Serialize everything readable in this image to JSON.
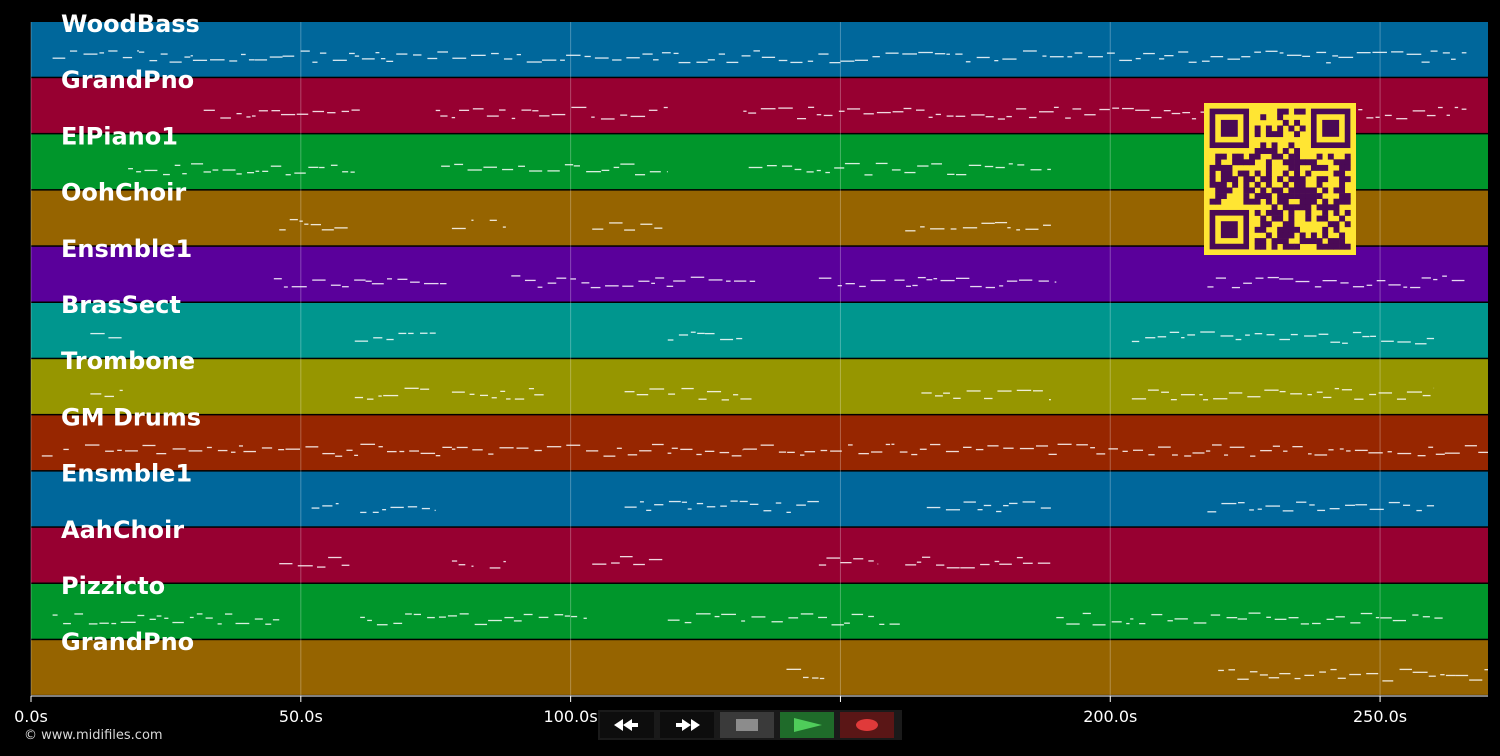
{
  "timeline": {
    "max_seconds": 270,
    "ticks": [
      {
        "t": 0,
        "label": "0.0s"
      },
      {
        "t": 50,
        "label": "50.0s"
      },
      {
        "t": 100,
        "label": "100.0s"
      },
      {
        "t": 150,
        "label": "150.0s"
      },
      {
        "t": 200,
        "label": "200.0s"
      },
      {
        "t": 250,
        "label": "250.0s"
      }
    ]
  },
  "tracks": [
    {
      "name": "WoodBass",
      "color": "#00679b",
      "segments": [
        [
          4,
          20
        ],
        [
          20,
          30
        ],
        [
          30,
          60
        ],
        [
          60,
          90
        ],
        [
          90,
          120
        ],
        [
          120,
          150
        ],
        [
          150,
          180
        ],
        [
          180,
          210
        ],
        [
          210,
          240
        ],
        [
          240,
          266
        ]
      ]
    },
    {
      "name": "GrandPno",
      "color": "#970031",
      "segments": [
        [
          32,
          61
        ],
        [
          75,
          118
        ],
        [
          132,
          266
        ]
      ]
    },
    {
      "name": "ElPiano1",
      "color": "#00962b",
      "segments": [
        [
          18,
          60
        ],
        [
          76,
          118
        ],
        [
          133,
          189
        ]
      ]
    },
    {
      "name": "OohChoir",
      "color": "#966400",
      "segments": [
        [
          46,
          59
        ],
        [
          78,
          82
        ],
        [
          85,
          88
        ],
        [
          104,
          117
        ],
        [
          162,
          189
        ]
      ]
    },
    {
      "name": "Ensmble1",
      "color": "#5a009b",
      "segments": [
        [
          45,
          62
        ],
        [
          62,
          77
        ],
        [
          89,
          101
        ],
        [
          102,
          119
        ],
        [
          119,
          135
        ],
        [
          146,
          159
        ],
        [
          160,
          190
        ],
        [
          218,
          266
        ]
      ]
    },
    {
      "name": "BrasSect",
      "color": "#00968e",
      "segments": [
        [
          11,
          17
        ],
        [
          60,
          75
        ],
        [
          118,
          132
        ],
        [
          204,
          260
        ]
      ]
    },
    {
      "name": "Trombone",
      "color": "#969600",
      "segments": [
        [
          11,
          17
        ],
        [
          60,
          74
        ],
        [
          78,
          95
        ],
        [
          110,
          134
        ],
        [
          165,
          189
        ],
        [
          204,
          260
        ]
      ]
    },
    {
      "name": "GM Drums",
      "color": "#972600",
      "segments": [
        [
          2,
          4
        ],
        [
          6,
          7
        ],
        [
          10,
          78
        ],
        [
          78,
          132
        ],
        [
          132,
          160
        ],
        [
          161,
          262
        ],
        [
          262,
          270
        ]
      ]
    },
    {
      "name": "Ensmble1",
      "color": "#00679b",
      "segments": [
        [
          52,
          57
        ],
        [
          61,
          75
        ],
        [
          110,
          146
        ],
        [
          166,
          189
        ],
        [
          218,
          260
        ]
      ]
    },
    {
      "name": "AahChoir",
      "color": "#970031",
      "segments": [
        [
          46,
          59
        ],
        [
          78,
          82
        ],
        [
          85,
          88
        ],
        [
          104,
          117
        ],
        [
          146,
          157
        ],
        [
          162,
          189
        ]
      ]
    },
    {
      "name": "Pizzicto",
      "color": "#00962b",
      "segments": [
        [
          4,
          46
        ],
        [
          61,
          103
        ],
        [
          118,
          161
        ],
        [
          190,
          262
        ]
      ]
    },
    {
      "name": "GrandPno",
      "color": "#966400",
      "segments": [
        [
          140,
          147
        ],
        [
          220,
          264
        ],
        [
          264,
          270
        ]
      ]
    }
  ],
  "copyright": "© www.midifiles.com",
  "transport": {
    "rewind_icon": "rewind-icon",
    "forward_icon": "fast-forward-icon",
    "stop_icon": "stop-icon",
    "play_icon": "play-icon",
    "record_icon": "record-icon",
    "stop_color": "#8c8c8c",
    "play_color": "#4fcc5a",
    "record_color": "#e03a3a"
  },
  "qr_code": {
    "fg": "#4a0a55",
    "bg": "#ffe533"
  }
}
